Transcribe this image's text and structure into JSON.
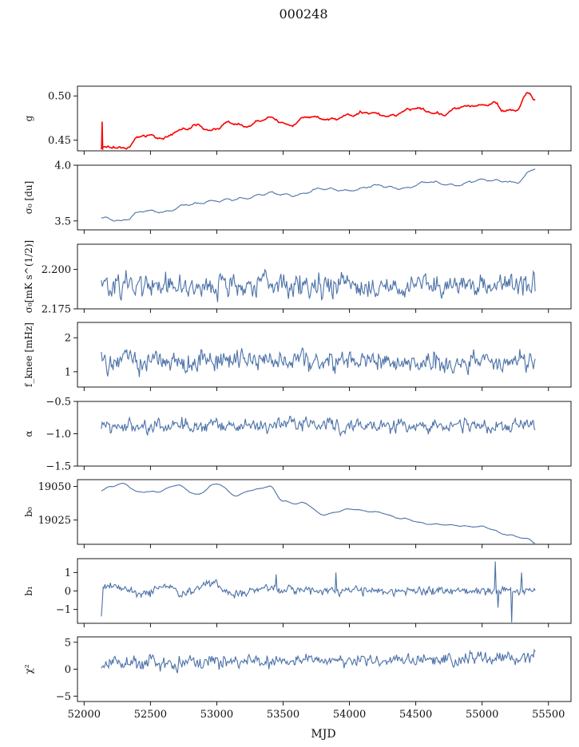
{
  "figure": {
    "title": "000248",
    "xlabel": "MJD"
  },
  "chart_data": {
    "type": "line",
    "title": "000248",
    "xlabel": "MJD",
    "xlim": [
      51950,
      55670
    ],
    "xticks": [
      52000,
      52500,
      53000,
      53500,
      54000,
      54500,
      55000,
      55500
    ],
    "xtick_labels": [
      "52000",
      "52500",
      "53000",
      "53500",
      "54000",
      "54500",
      "55000",
      "55500"
    ],
    "x_start": 52130,
    "x_end": 55400,
    "line_color": "#4c72a8",
    "overlay_color": "#ff0000",
    "panels": [
      {
        "id": "g",
        "ylabel": "g",
        "ylim": [
          0.438,
          0.511
        ],
        "yticks": [
          0.45,
          0.5
        ],
        "ytick_labels": [
          "0.45",
          "0.50"
        ],
        "anchors": [
          [
            52130,
            0.441
          ],
          [
            52200,
            0.443
          ],
          [
            52300,
            0.441
          ],
          [
            52450,
            0.456
          ],
          [
            52600,
            0.452
          ],
          [
            52700,
            0.46
          ],
          [
            52850,
            0.467
          ],
          [
            52950,
            0.461
          ],
          [
            53100,
            0.47
          ],
          [
            53200,
            0.466
          ],
          [
            53400,
            0.475
          ],
          [
            53550,
            0.467
          ],
          [
            53700,
            0.477
          ],
          [
            53850,
            0.473
          ],
          [
            54000,
            0.478
          ],
          [
            54150,
            0.482
          ],
          [
            54300,
            0.477
          ],
          [
            54500,
            0.486
          ],
          [
            54700,
            0.479
          ],
          [
            54850,
            0.488
          ],
          [
            55000,
            0.489
          ],
          [
            55100,
            0.492
          ],
          [
            55150,
            0.484
          ],
          [
            55250,
            0.483
          ],
          [
            55350,
            0.503
          ],
          [
            55400,
            0.497
          ]
        ],
        "osc_amp": 0.001,
        "noise": 0.0008,
        "n": 400,
        "overlay": true,
        "overlay_note": "red curve traces the blue g series"
      },
      {
        "id": "sigma0",
        "ylabel": "σ₀ [du]",
        "ylim": [
          3.42,
          4.0
        ],
        "yticks": [
          3.5,
          4.0
        ],
        "ytick_labels": [
          "3.5",
          "4.0"
        ],
        "anchors": [
          [
            52130,
            3.53
          ],
          [
            52280,
            3.5
          ],
          [
            52450,
            3.59
          ],
          [
            52600,
            3.58
          ],
          [
            52800,
            3.65
          ],
          [
            53000,
            3.68
          ],
          [
            53200,
            3.7
          ],
          [
            53400,
            3.75
          ],
          [
            53600,
            3.73
          ],
          [
            53800,
            3.79
          ],
          [
            54000,
            3.77
          ],
          [
            54200,
            3.82
          ],
          [
            54400,
            3.79
          ],
          [
            54600,
            3.85
          ],
          [
            54800,
            3.82
          ],
          [
            55000,
            3.87
          ],
          [
            55150,
            3.86
          ],
          [
            55250,
            3.84
          ],
          [
            55400,
            3.97
          ]
        ],
        "osc_amp": 0.008,
        "noise": 0.004,
        "n": 400,
        "overlay": false
      },
      {
        "id": "sigma0_mks",
        "ylabel": "σ₀[mK s^(1/2)]",
        "ylim": [
          2.175,
          2.216
        ],
        "yticks": [
          2.175,
          2.2
        ],
        "ytick_labels": [
          "2.175",
          "2.200"
        ],
        "anchors": [
          [
            52130,
            2.19
          ],
          [
            55400,
            2.19
          ]
        ],
        "osc_amp": 0.0,
        "noise": 0.0055,
        "n": 460,
        "overlay": false
      },
      {
        "id": "fknee",
        "ylabel": "f_knee [mHz]",
        "ylim": [
          0.55,
          2.45
        ],
        "yticks": [
          1,
          2
        ],
        "ytick_labels": [
          "1",
          "2"
        ],
        "anchors": [
          [
            52130,
            1.3
          ],
          [
            55400,
            1.3
          ]
        ],
        "osc_amp": 0.0,
        "noise": 0.22,
        "n": 480,
        "overlay": false
      },
      {
        "id": "alpha",
        "ylabel": "α",
        "ylim": [
          -1.5,
          -0.5
        ],
        "yticks": [
          -1.5,
          -1.0,
          -0.5
        ],
        "ytick_labels": [
          "−1.5",
          "−1.0",
          "−0.5"
        ],
        "anchors": [
          [
            52130,
            -0.88
          ],
          [
            55400,
            -0.88
          ]
        ],
        "osc_amp": 0.0,
        "noise": 0.075,
        "n": 480,
        "overlay": false
      },
      {
        "id": "b0",
        "ylabel": "b₀",
        "ylim": [
          19007,
          19055
        ],
        "yticks": [
          19025,
          19050
        ],
        "ytick_labels": [
          "19025",
          "19050"
        ],
        "anchors": [
          [
            52130,
            19047
          ],
          [
            52200,
            19050
          ],
          [
            52300,
            19052
          ],
          [
            52400,
            19046
          ],
          [
            52550,
            19046
          ],
          [
            52700,
            19051
          ],
          [
            52850,
            19044
          ],
          [
            53000,
            19052
          ],
          [
            53150,
            19043
          ],
          [
            53250,
            19047
          ],
          [
            53400,
            19050
          ],
          [
            53500,
            19039
          ],
          [
            53600,
            19037
          ],
          [
            53650,
            19038
          ],
          [
            53800,
            19029
          ],
          [
            54000,
            19033
          ],
          [
            54200,
            19031
          ],
          [
            54400,
            19026
          ],
          [
            54600,
            19022
          ],
          [
            55000,
            19020
          ],
          [
            55200,
            19014
          ],
          [
            55350,
            19011
          ],
          [
            55400,
            19008
          ]
        ],
        "osc_amp": 0.3,
        "noise": 0.15,
        "n": 400,
        "overlay": false
      },
      {
        "id": "b1",
        "ylabel": "b₁",
        "ylim": [
          -1.75,
          1.75
        ],
        "yticks": [
          -1,
          0,
          1
        ],
        "ytick_labels": [
          "−1",
          "0",
          "1"
        ],
        "anchors": [
          [
            52130,
            -1.3
          ],
          [
            52145,
            0.3
          ],
          [
            52300,
            0.1
          ],
          [
            52450,
            -0.2
          ],
          [
            52600,
            0.3
          ],
          [
            52750,
            -0.1
          ],
          [
            52950,
            0.4
          ],
          [
            53150,
            -0.2
          ],
          [
            53400,
            0.2
          ],
          [
            53600,
            0.0
          ],
          [
            55400,
            0.0
          ]
        ],
        "osc_amp": 0.0,
        "noise": 0.17,
        "n": 480,
        "overlay": false,
        "spikes": [
          [
            53450,
            0.9
          ],
          [
            53900,
            1.0
          ],
          [
            55100,
            1.6
          ],
          [
            55120,
            -0.9
          ],
          [
            55220,
            -1.7
          ],
          [
            55300,
            1.0
          ]
        ]
      },
      {
        "id": "chi2",
        "ylabel": "χ²",
        "ylim": [
          -6,
          6
        ],
        "yticks": [
          -5,
          0,
          5
        ],
        "ytick_labels": [
          "−5",
          "0",
          "5"
        ],
        "anchors": [
          [
            52130,
            1.1
          ],
          [
            54300,
            1.7
          ],
          [
            55300,
            2.1
          ],
          [
            55400,
            3.0
          ]
        ],
        "osc_amp": 0.0,
        "noise": 0.9,
        "n": 480,
        "overlay": false
      }
    ]
  }
}
